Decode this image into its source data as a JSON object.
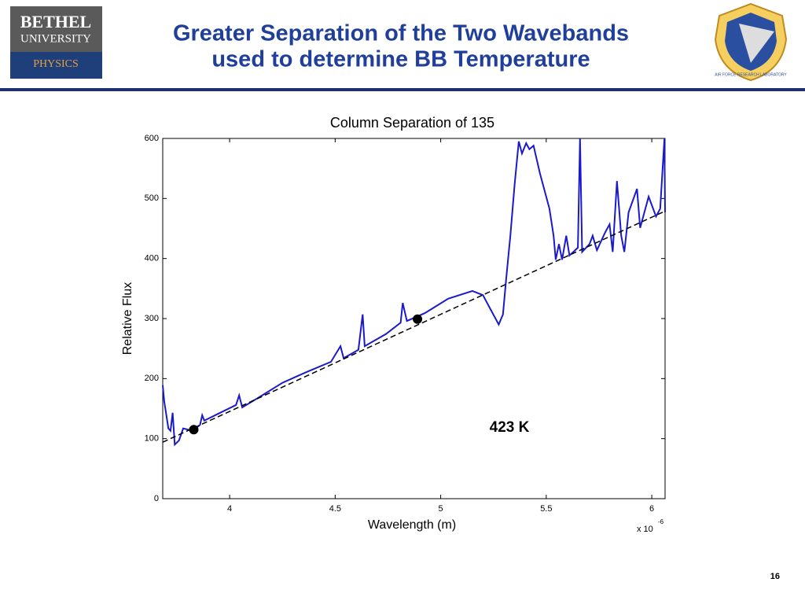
{
  "header": {
    "title_line1": "Greater Separation of the Two Wavebands",
    "title_line2": "used to determine BB Temperature",
    "logo_left": {
      "line1": "BETHEL",
      "line2": "UNIVERSITY",
      "line3": "PHYSICS"
    },
    "logo_right_text": "AIR FORCE RESEARCH LABORATORY"
  },
  "page_number": "16",
  "chart_data": {
    "type": "line",
    "title": "Column Separation of 135",
    "x_label": "Wavelength (m)",
    "y_label": "Relative Flux",
    "x_multiplier_base": "x 10",
    "x_multiplier_exponent": "-6",
    "annotation": "423 K",
    "xlim": [
      3.683,
      6.063
    ],
    "xticks": [
      4,
      4.5,
      5,
      5.5,
      6
    ],
    "ylim": [
      0,
      600
    ],
    "yticks": [
      0,
      100,
      200,
      300,
      400,
      500,
      600
    ],
    "grid": false,
    "series": [
      {
        "name": "spectrum",
        "color": "#1a1acc",
        "style": "solid",
        "x": [
          3.683,
          3.69,
          3.71,
          3.72,
          3.73,
          3.74,
          3.76,
          3.78,
          3.825,
          3.86,
          3.87,
          3.88,
          3.955,
          4.03,
          4.045,
          4.06,
          4.14,
          4.25,
          4.365,
          4.48,
          4.525,
          4.54,
          4.61,
          4.63,
          4.64,
          4.74,
          4.81,
          4.82,
          4.84,
          4.925,
          5.035,
          5.15,
          5.2,
          5.24,
          5.275,
          5.295,
          5.31,
          5.33,
          5.35,
          5.37,
          5.385,
          5.405,
          5.42,
          5.44,
          5.47,
          5.5,
          5.515,
          5.535,
          5.545,
          5.56,
          5.575,
          5.595,
          5.61,
          5.65,
          5.66,
          5.67,
          5.705,
          5.72,
          5.74,
          5.78,
          5.8,
          5.815,
          5.835,
          5.855,
          5.87,
          5.89,
          5.93,
          5.945,
          5.985,
          6.02,
          6.04,
          6.06,
          6.063
        ],
        "values": [
          189,
          162,
          117,
          113,
          143,
          90,
          97,
          117,
          113,
          123,
          139,
          130,
          143,
          156,
          172,
          152,
          169,
          193,
          211,
          228,
          254,
          234,
          248,
          307,
          254,
          274,
          293,
          326,
          296,
          309,
          333,
          346,
          339,
          313,
          290,
          307,
          365,
          438,
          523,
          595,
          575,
          592,
          582,
          588,
          542,
          503,
          483,
          438,
          398,
          424,
          398,
          438,
          405,
          418,
          600,
          411,
          424,
          438,
          414,
          444,
          457,
          411,
          529,
          438,
          411,
          477,
          516,
          451,
          503,
          470,
          483,
          600,
          477
        ]
      },
      {
        "name": "fit",
        "color": "#000000",
        "style": "dashed",
        "x": [
          3.683,
          6.063
        ],
        "values": [
          94,
          479
        ]
      },
      {
        "name": "points",
        "color": "#000000",
        "style": "markers",
        "x": [
          3.83,
          4.89
        ],
        "values": [
          115,
          299
        ]
      }
    ]
  }
}
